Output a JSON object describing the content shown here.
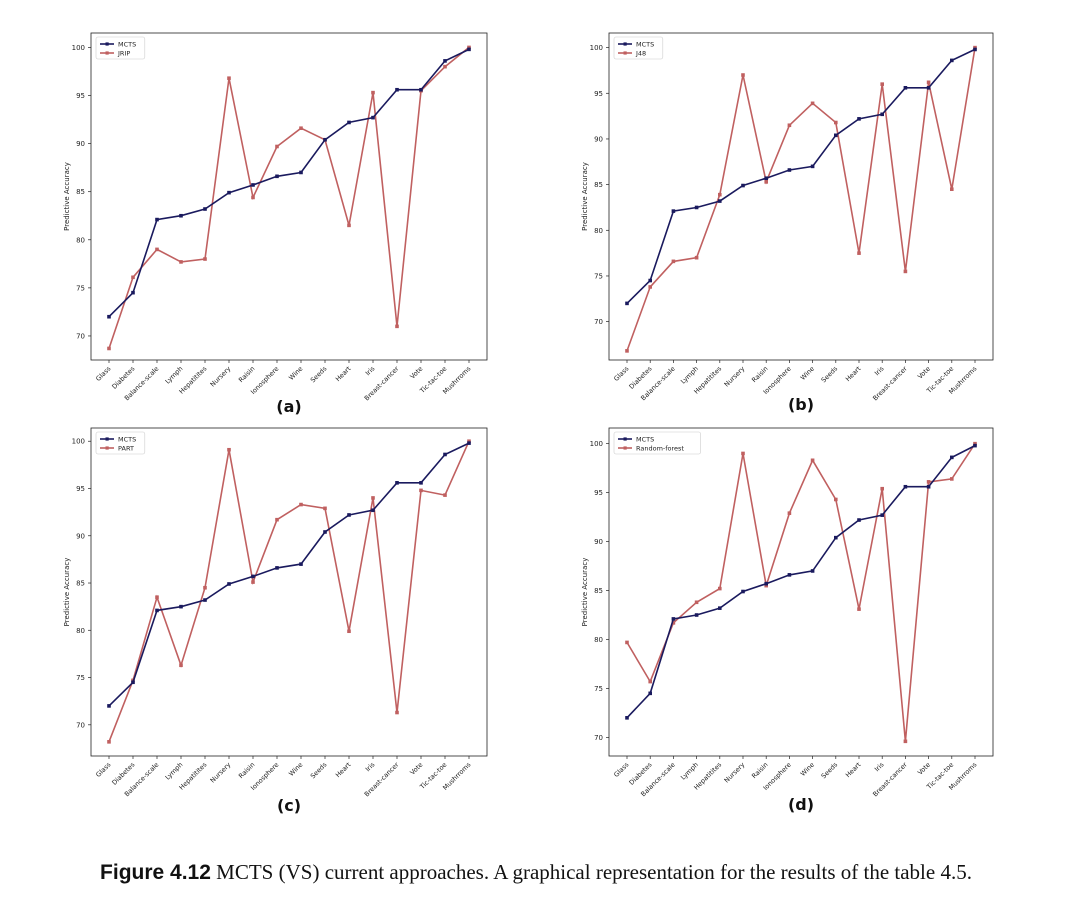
{
  "caption": {
    "label": "Figure 4.12",
    "text": " MCTS (VS) current approaches. A graphical representation for the results of the table 4.5."
  },
  "colors": {
    "mcts": "#1a1a5e",
    "other": "#c06060"
  },
  "chart_data": [
    {
      "type": "line",
      "panel_label": "(a)",
      "ylabel": "Predictive Accuracy",
      "legend_position": "upper-left",
      "categories": [
        "Glass",
        "Diabetes",
        "Balance-scale",
        "Lymph",
        "Hepatitites",
        "Nursery",
        "Raisin",
        "Ionosphere",
        "Wine",
        "Seeds",
        "Heart",
        "Iris",
        "Breast-cancer",
        "Vote",
        "Tic-tac-toe",
        "Mushrroms"
      ],
      "yticks": [
        70,
        75,
        80,
        85,
        90,
        95,
        100
      ],
      "ylim": [
        67.5,
        101.5
      ],
      "series": [
        {
          "name": "MCTS",
          "values": [
            72.0,
            74.5,
            82.1,
            82.5,
            83.2,
            84.9,
            85.7,
            86.6,
            87.0,
            90.4,
            92.2,
            92.7,
            95.6,
            95.6,
            98.6,
            99.8
          ]
        },
        {
          "name": "JRIP",
          "values": [
            68.7,
            76.1,
            79.0,
            77.7,
            78.0,
            96.8,
            84.4,
            89.7,
            91.6,
            90.4,
            81.5,
            95.3,
            71.0,
            95.5,
            98.0,
            100.0
          ]
        }
      ]
    },
    {
      "type": "line",
      "panel_label": "(b)",
      "ylabel": "Predictive Accuracy",
      "legend_position": "upper-left",
      "categories": [
        "Glass",
        "Diabetes",
        "Balance-scale",
        "Lymph",
        "Hepatitites",
        "Nursery",
        "Raisin",
        "Ionosphere",
        "Wine",
        "Seeds",
        "Heart",
        "Iris",
        "Breast-cancer",
        "Vote",
        "Tic-tac-toe",
        "Mushrroms"
      ],
      "yticks": [
        70,
        75,
        80,
        85,
        90,
        95,
        100
      ],
      "ylim": [
        65.8,
        101.6
      ],
      "series": [
        {
          "name": "MCTS",
          "values": [
            72.0,
            74.5,
            82.1,
            82.5,
            83.2,
            84.9,
            85.7,
            86.6,
            87.0,
            90.4,
            92.2,
            92.7,
            95.6,
            95.6,
            98.6,
            99.8
          ]
        },
        {
          "name": "J48",
          "values": [
            66.8,
            73.8,
            76.6,
            77.0,
            83.9,
            97.0,
            85.3,
            91.5,
            93.9,
            91.8,
            77.5,
            96.0,
            75.5,
            96.2,
            84.5,
            100.0
          ]
        }
      ]
    },
    {
      "type": "line",
      "panel_label": "(c)",
      "ylabel": "Predictive Accuracy",
      "legend_position": "upper-left",
      "categories": [
        "Glass",
        "Diabetes",
        "Balance-scale",
        "Lymph",
        "Hepatitites",
        "Nursery",
        "Raisin",
        "Ionosphere",
        "Wine",
        "Seeds",
        "Heart",
        "Iris",
        "Breast-cancer",
        "Vote",
        "Tic-tac-toe",
        "Mushrroms"
      ],
      "yticks": [
        70,
        75,
        80,
        85,
        90,
        95,
        100
      ],
      "ylim": [
        66.7,
        101.4
      ],
      "series": [
        {
          "name": "MCTS",
          "values": [
            72.0,
            74.5,
            82.1,
            82.5,
            83.2,
            84.9,
            85.7,
            86.6,
            87.0,
            90.4,
            92.2,
            92.7,
            95.6,
            95.6,
            98.6,
            99.8
          ]
        },
        {
          "name": "PART",
          "values": [
            68.2,
            74.7,
            83.5,
            76.3,
            84.5,
            99.1,
            85.1,
            91.7,
            93.3,
            92.9,
            79.9,
            94.0,
            71.3,
            94.8,
            94.3,
            100.0
          ]
        }
      ]
    },
    {
      "type": "line",
      "panel_label": "(d)",
      "ylabel": "Predictive Accuracy",
      "legend_position": "upper-left",
      "categories": [
        "Glass",
        "Diabetes",
        "Balance-scale",
        "Lymph",
        "Hepatitites",
        "Nursery",
        "Raisin",
        "Ionosphere",
        "Wine",
        "Seeds",
        "Heart",
        "Iris",
        "Breast-cancer",
        "Vote",
        "Tic-tac-toe",
        "Mushrroms"
      ],
      "yticks": [
        70,
        75,
        80,
        85,
        90,
        95,
        100
      ],
      "ylim": [
        68.1,
        101.6
      ],
      "series": [
        {
          "name": "MCTS",
          "values": [
            72.0,
            74.5,
            82.1,
            82.5,
            83.2,
            84.9,
            85.7,
            86.6,
            87.0,
            90.4,
            92.2,
            92.7,
            95.6,
            95.6,
            98.6,
            99.8
          ]
        },
        {
          "name": "Random-forest",
          "values": [
            79.7,
            75.7,
            81.7,
            83.8,
            85.2,
            99.0,
            85.5,
            92.9,
            98.3,
            94.3,
            83.1,
            95.4,
            69.6,
            96.1,
            96.4,
            100.0
          ]
        }
      ]
    }
  ]
}
